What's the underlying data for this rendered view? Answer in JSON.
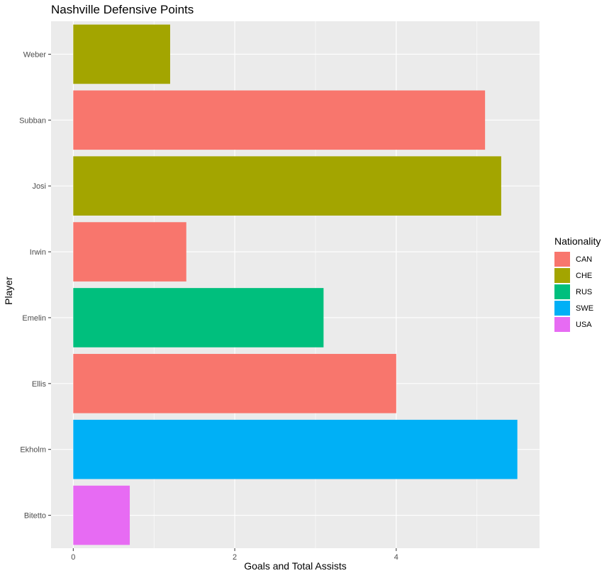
{
  "chart_data": {
    "type": "bar",
    "orientation": "horizontal",
    "title": "Nashville Defensive Points",
    "xlabel": "Goals and Total Assists",
    "ylabel": "Player",
    "categories": [
      "Bitetto",
      "Ekholm",
      "Ellis",
      "Emelin",
      "Irwin",
      "Josi",
      "Subban",
      "Weber"
    ],
    "values": [
      0.7,
      5.5,
      4.0,
      3.1,
      1.4,
      5.3,
      5.1,
      1.2
    ],
    "nationality": [
      "USA",
      "SWE",
      "CAN",
      "RUS",
      "CAN",
      "CHE",
      "CAN",
      "CHE"
    ],
    "xlim": [
      -0.275,
      5.775
    ],
    "xticks": [
      0,
      2,
      4
    ],
    "xtick_labels": [
      "0",
      "2",
      "4"
    ],
    "grid": true,
    "legend": {
      "title": "Nationality",
      "position": "right",
      "entries": [
        {
          "label": "CAN",
          "color": "#F8766D"
        },
        {
          "label": "CHE",
          "color": "#A3A500"
        },
        {
          "label": "RUS",
          "color": "#00BF7D"
        },
        {
          "label": "SWE",
          "color": "#00B0F6"
        },
        {
          "label": "USA",
          "color": "#E76BF3"
        }
      ]
    },
    "panel_background": "#EBEBEB",
    "gridline_color": "#FFFFFF",
    "tick_label_color": "#4D4D4D"
  }
}
